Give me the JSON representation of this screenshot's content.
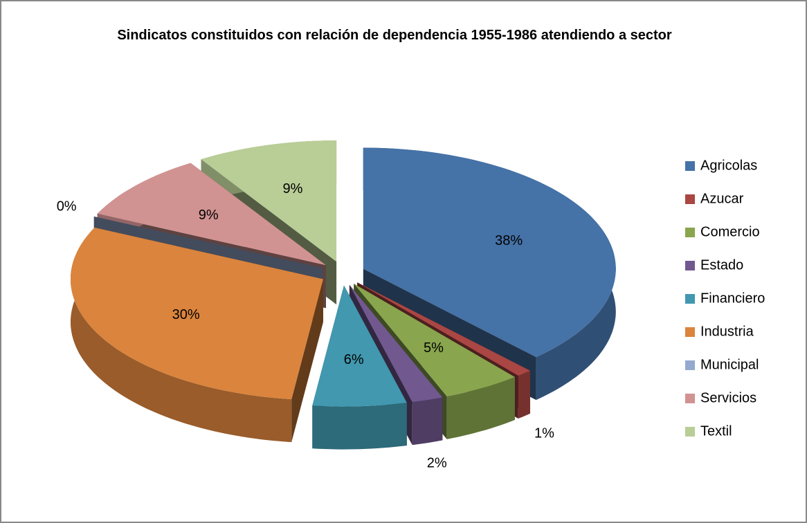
{
  "chart_data": {
    "type": "pie",
    "title": "Sindicatos constituidos con relación de dependencia 1955-1986 atendiendo a sector",
    "categories": [
      "Agricolas",
      "Azucar",
      "Comercio",
      "Estado",
      "Financiero",
      "Industria",
      "Municipal",
      "Servicios",
      "Textil"
    ],
    "values": [
      38,
      1,
      5,
      2,
      6,
      30,
      0,
      9,
      9
    ],
    "value_labels": [
      "38%",
      "1%",
      "5%",
      "2%",
      "6%",
      "30%",
      "0%",
      "9%",
      "9%"
    ],
    "colors": [
      "#4572a7",
      "#aa4643",
      "#89a54e",
      "#71588f",
      "#4198af",
      "#db843d",
      "#93a9cf",
      "#d19392",
      "#b9cd96"
    ],
    "legend": "right"
  }
}
